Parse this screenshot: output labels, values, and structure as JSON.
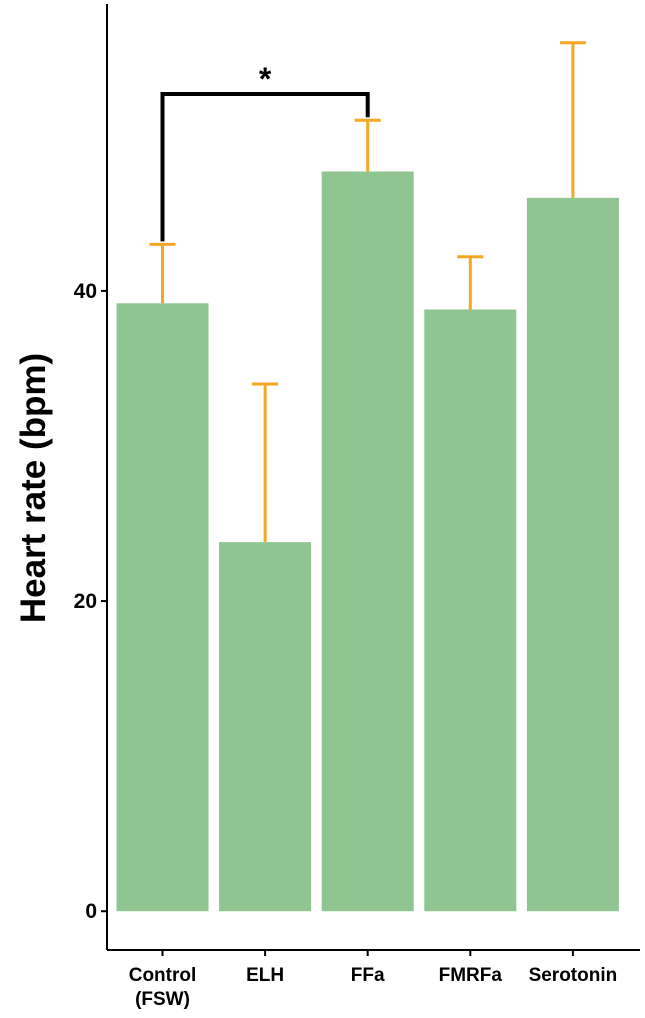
{
  "chart_data": {
    "type": "bar",
    "title": "",
    "xlabel": "",
    "ylabel": "Heart rate (bpm)",
    "ylim": [
      -2.5,
      58.5
    ],
    "yticks": [
      0,
      20,
      40
    ],
    "grid": false,
    "legend": "none",
    "categories": [
      "Control\n(FSW)",
      "ELH",
      "FFa",
      "FMRFa",
      "Serotonin"
    ],
    "series": [
      {
        "values": [
          39.2,
          23.8,
          47.7,
          38.8,
          46.0
        ],
        "error_upper": [
          43.0,
          34.0,
          51.0,
          42.2,
          56.0
        ]
      }
    ],
    "significance": [
      {
        "from": "Control\n(FSW)",
        "to": "FFa",
        "label": "*",
        "y": 52.7
      }
    ],
    "colors": {
      "bar": "#90c592",
      "error_bar": "#f5a623",
      "bracket": "#000000",
      "axis": "#000000"
    }
  }
}
